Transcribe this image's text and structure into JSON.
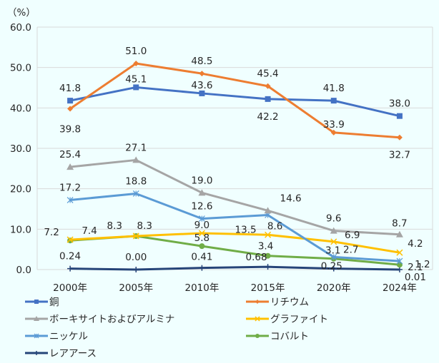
{
  "chart_data": {
    "type": "line",
    "title": "",
    "ylabel": "（%）",
    "xlabel": "",
    "ylim": [
      0,
      60
    ],
    "yticks": [
      "0.0",
      "10.0",
      "20.0",
      "30.0",
      "40.0",
      "50.0",
      "60.0"
    ],
    "ytick_values": [
      0,
      10,
      20,
      30,
      40,
      50,
      60
    ],
    "grid": true,
    "legend_position": "bottom",
    "categories": [
      "2000年",
      "2005年",
      "2010年",
      "2015年",
      "2020年",
      "2024年"
    ],
    "series": [
      {
        "name": "銅",
        "color": "#4472C4",
        "marker": "square",
        "values": [
          41.8,
          45.1,
          43.6,
          42.2,
          41.8,
          38.0
        ],
        "labels": [
          "41.8",
          "45.1",
          "43.6",
          "42.2",
          "41.8",
          "38.0"
        ]
      },
      {
        "name": "リチウム",
        "color": "#ED7D31",
        "marker": "diamond",
        "values": [
          39.8,
          51.0,
          48.5,
          45.4,
          33.9,
          32.7
        ],
        "labels": [
          "39.8",
          "51.0",
          "48.5",
          "45.4",
          "33.9",
          "32.7"
        ]
      },
      {
        "name": "ボーキサイトおよびアルミナ",
        "color": "#A5A5A5",
        "marker": "triangle",
        "values": [
          25.4,
          27.1,
          19.0,
          14.6,
          9.6,
          8.7
        ],
        "labels": [
          "25.4",
          "27.1",
          "19.0",
          "14.6",
          "9.6",
          "8.7"
        ]
      },
      {
        "name": "グラファイト",
        "color": "#FFC000",
        "marker": "x",
        "values": [
          7.4,
          8.3,
          9.0,
          8.6,
          6.9,
          4.2
        ],
        "labels": [
          "7.4",
          "8.3",
          "9.0",
          "8.6",
          "6.9",
          "4.2"
        ]
      },
      {
        "name": "ニッケル",
        "color": "#5B9BD5",
        "marker": "star",
        "values": [
          17.2,
          18.8,
          12.6,
          13.5,
          3.1,
          2.1
        ],
        "labels": [
          "17.2",
          "18.8",
          "12.6",
          "13.5",
          "3.1",
          "2.1"
        ]
      },
      {
        "name": "コバルト",
        "color": "#70AD47",
        "marker": "circle",
        "values": [
          7.2,
          8.3,
          5.8,
          3.4,
          2.7,
          1.2
        ],
        "labels": [
          "7.2",
          "8.3",
          "5.8",
          "3.4",
          "2.7",
          "1.2"
        ]
      },
      {
        "name": "レアアース",
        "color": "#264478",
        "marker": "plus",
        "values": [
          0.24,
          0.0,
          0.41,
          0.68,
          0.25,
          0.01
        ],
        "labels": [
          "0.24",
          "0.00",
          "0.41",
          "0.68",
          "0.25",
          "0.01"
        ]
      }
    ]
  }
}
